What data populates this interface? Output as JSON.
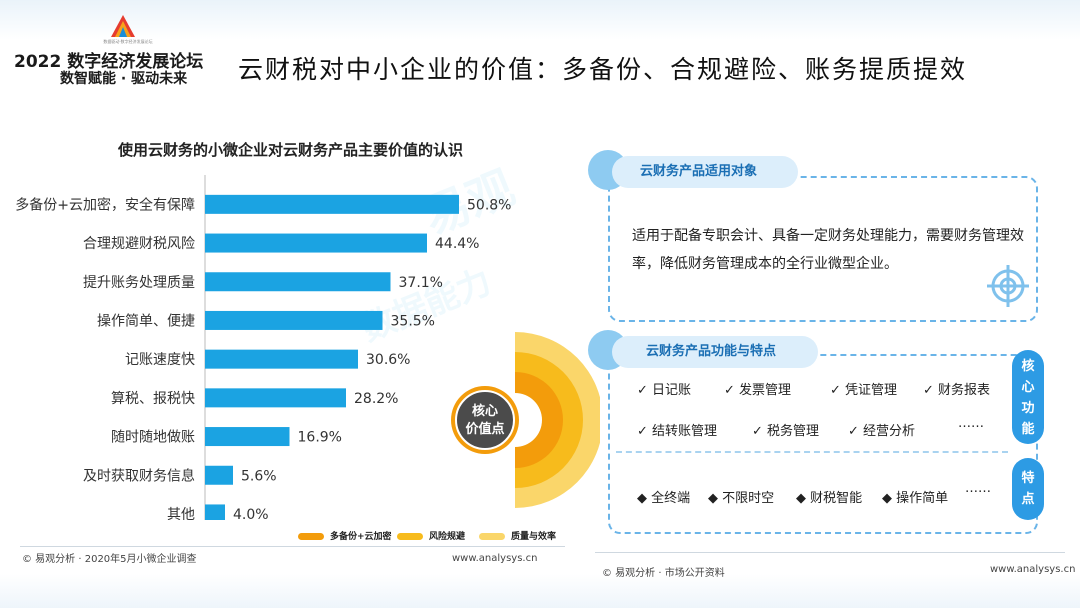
{
  "header": {
    "tiny_text": "数据驱动·数字经济发展论坛",
    "forum_name": "2022 数字经济发展论坛",
    "slogan": "数智赋能 · 驱动未来",
    "page_title": "云财税对中小企业的价值：多备份、合规避险、账务提质提效"
  },
  "chart_data": {
    "type": "bar",
    "orientation": "horizontal",
    "title": "使用云财务的小微企业对云财务产品主要价值的认识",
    "categories": [
      "多备份+云加密，安全有保障",
      "合理规避财税风险",
      "提升账务处理质量",
      "操作简单、便捷",
      "记账速度快",
      "算税、报税快",
      "随时随地做账",
      "及时获取财务信息",
      "其他"
    ],
    "values": [
      50.8,
      44.4,
      37.1,
      35.5,
      30.6,
      28.2,
      16.9,
      5.6,
      4.0
    ],
    "value_labels": [
      "50.8%",
      "44.4%",
      "37.1%",
      "35.5%",
      "30.6%",
      "28.2%",
      "16.9%",
      "5.6%",
      "4.0%"
    ],
    "bar_color": "#1ba3e2",
    "xlim": [
      0,
      55
    ],
    "grid": false
  },
  "ring": {
    "center_label_line1": "核心",
    "center_label_line2": "价值点",
    "legend": [
      {
        "label": "多备份+云加密",
        "color": "#f39c0b"
      },
      {
        "label": "风险规避",
        "color": "#f7bb1c"
      },
      {
        "label": "质量与效率",
        "color": "#fad66a"
      }
    ],
    "center_color": "#4b4b4b"
  },
  "left_footer": {
    "source": "© 易观分析 · 2020年5月小微企业调查",
    "url": "www.analysys.cn"
  },
  "right_footer": {
    "source": "© 易观分析 · 市场公开资料",
    "url": "www.analysys.cn"
  },
  "target_panel": {
    "title": "云财务产品适用对象",
    "text": "适用于配备专职会计、具备一定财务处理能力，需要财务管理效率，降低财务管理成本的全行业微型企业。",
    "icon": "target-icon"
  },
  "feature_panel": {
    "title": "云财务产品功能与特点",
    "core_row1": [
      "✓ 日记账",
      "✓ 发票管理",
      "✓ 凭证管理",
      "✓ 财务报表"
    ],
    "core_row2": [
      "✓ 结转账管理",
      "✓ 税务管理",
      "✓ 经营分析",
      "……"
    ],
    "feature_row": [
      "◆ 全终端",
      "◆ 不限时空",
      "◆ 财税智能",
      "◆ 操作简单",
      "……"
    ],
    "core_tag": "核心功能",
    "feature_tag": "特点"
  },
  "watermark": {
    "text1": "易观",
    "text2": "数据能力"
  },
  "colors": {
    "accent": "#1ba3e2",
    "panel_border": "#6ab4e8",
    "tag_blue": "#2d9be4"
  }
}
